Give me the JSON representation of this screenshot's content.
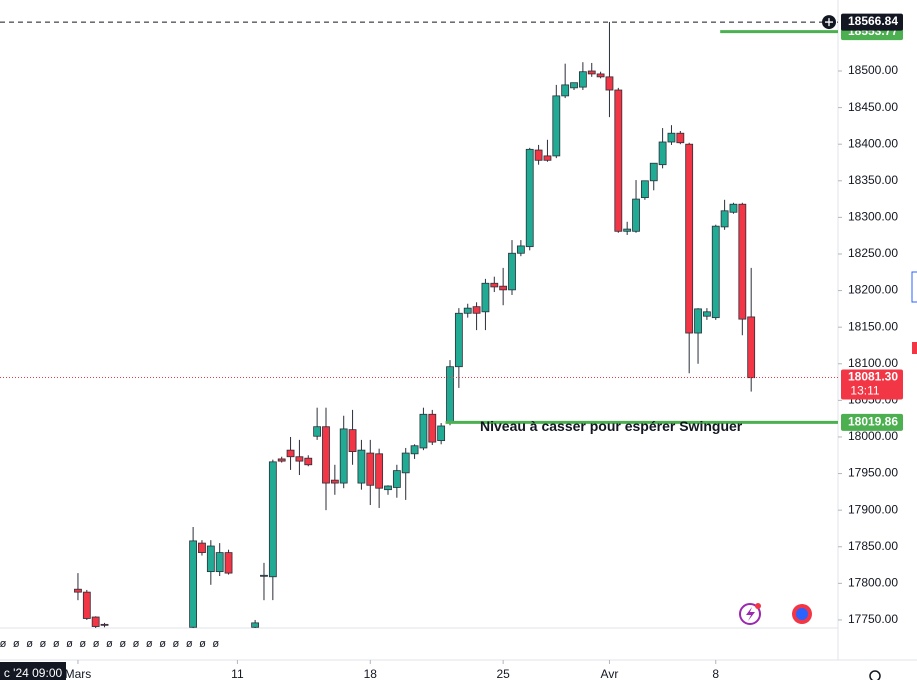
{
  "chart_data": {
    "type": "candlestick",
    "x": [
      0,
      1,
      2,
      3,
      13,
      14,
      15,
      16,
      17,
      20,
      21,
      22,
      23,
      24,
      25,
      26,
      27,
      28,
      29,
      30,
      31,
      32,
      33,
      34,
      35,
      36,
      37,
      38,
      39,
      40,
      41,
      42,
      43,
      44,
      45,
      46,
      47,
      48,
      49,
      50,
      51,
      52,
      53,
      54,
      55,
      56,
      57,
      58,
      59,
      60,
      61,
      62,
      63,
      64,
      65,
      66,
      67,
      68,
      69,
      70,
      71,
      72,
      73,
      74,
      75,
      76
    ],
    "open": [
      17792,
      17788,
      17754,
      17744,
      17740,
      17855,
      17816,
      17816,
      17842,
      17740,
      17810,
      17809,
      17970,
      17982,
      17973,
      17971,
      18001,
      18014,
      17941,
      17937,
      18010,
      17937,
      17978,
      17977,
      17928,
      17931,
      17951,
      17977,
      17985,
      18031,
      17995,
      18019,
      18096,
      18169,
      18178,
      18171,
      18210,
      18206,
      18201,
      18251,
      18260,
      18392,
      18384,
      18384,
      18466,
      18477,
      18478,
      18500,
      18496,
      18492,
      18474,
      18281,
      18281,
      18327,
      18350,
      18372,
      18403,
      18415,
      18400,
      18142,
      18165,
      18163,
      18287,
      18307,
      18318,
      18164
    ],
    "high": [
      17814,
      17791,
      17755,
      17746,
      17877,
      17859,
      17859,
      17855,
      17846,
      17750,
      17828,
      17969,
      17973,
      18000,
      17996,
      17975,
      18040,
      18040,
      17962,
      18029,
      18037,
      17996,
      17996,
      17984,
      17934,
      17962,
      17985,
      17990,
      18040,
      18037,
      18019,
      18105,
      18176,
      18182,
      18184,
      18216,
      18219,
      18231,
      18269,
      18269,
      18395,
      18399,
      18406,
      18481,
      18510,
      18484,
      18512,
      18511,
      18499,
      18567,
      18477,
      18294,
      18351,
      18350,
      18374,
      18422,
      18426,
      18418,
      18402,
      18176,
      18176,
      18290,
      18324,
      18320,
      18320,
      18231
    ],
    "low": [
      17777,
      17750,
      17739,
      17740,
      17739,
      17838,
      17798,
      17810,
      17812,
      17739,
      17777,
      17777,
      17965,
      17955,
      17948,
      17960,
      17996,
      17900,
      17921,
      17930,
      17962,
      17928,
      17907,
      17903,
      17921,
      17917,
      17914,
      17970,
      17982,
      17989,
      17990,
      18016,
      18067,
      18163,
      18146,
      18146,
      18198,
      18180,
      18194,
      18247,
      18255,
      18372,
      18376,
      18381,
      18463,
      18474,
      18474,
      18492,
      18490,
      18437,
      18279,
      18276,
      18279,
      18324,
      18337,
      18367,
      18399,
      18400,
      18087,
      18100,
      18160,
      18160,
      18283,
      18305,
      18139,
      18062
    ],
    "close": [
      17788,
      17752,
      17741,
      17743,
      17858,
      17842,
      17851,
      17842,
      17814,
      17746,
      17811,
      17966,
      17967,
      17973,
      17967,
      17962,
      18014,
      17937,
      17937,
      18011,
      17980,
      17982,
      17934,
      17930,
      17933,
      17954,
      17978,
      17988,
      18031,
      17993,
      18015,
      18096,
      18169,
      18176,
      18169,
      18210,
      18205,
      18201,
      18251,
      18261,
      18393,
      18378,
      18378,
      18466,
      18481,
      18484,
      18499,
      18496,
      18492,
      18474,
      18281,
      18284,
      18325,
      18350,
      18374,
      18403,
      18415,
      18402,
      18142,
      18175,
      18171,
      18288,
      18309,
      18318,
      18161,
      18081
    ],
    "up_color": "#22ab94",
    "down_color": "#f23645",
    "outline_color": "#2a2e39",
    "xlim": [
      -8.8,
      85.8
    ],
    "ylim": [
      17739,
      18597
    ],
    "yticks": [
      {
        "value": 17750,
        "label": "17750.00"
      },
      {
        "value": 17800,
        "label": "17800.00"
      },
      {
        "value": 17850,
        "label": "17850.00"
      },
      {
        "value": 17900,
        "label": "17900.00"
      },
      {
        "value": 17950,
        "label": "17950.00"
      },
      {
        "value": 18000,
        "label": "18000.00"
      },
      {
        "value": 18050,
        "label": "18050.00"
      },
      {
        "value": 18100,
        "label": "18100.00"
      },
      {
        "value": 18150,
        "label": "18150.00"
      },
      {
        "value": 18200,
        "label": "18200.00"
      },
      {
        "value": 18250,
        "label": "18250.00"
      },
      {
        "value": 18300,
        "label": "18300.00"
      },
      {
        "value": 18350,
        "label": "18350.00"
      },
      {
        "value": 18400,
        "label": "18400.00"
      },
      {
        "value": 18450,
        "label": "18450.00"
      },
      {
        "value": 18500,
        "label": "18500.00"
      }
    ],
    "xticks": [
      {
        "value": 0,
        "label": "Mars"
      },
      {
        "value": 18,
        "label": "11"
      },
      {
        "value": 33,
        "label": "18"
      },
      {
        "value": 48,
        "label": "25"
      },
      {
        "value": 60,
        "label": "Avr"
      },
      {
        "value": 72,
        "label": "8"
      }
    ],
    "levels": [
      {
        "value": 18553.77,
        "color": "#4caf50",
        "style": "solid",
        "start_x": 72.5
      },
      {
        "value": 18566.84,
        "color": "#131722",
        "style": "dashed",
        "start_x": -8.8
      },
      {
        "value": 18019.86,
        "color": "#4caf50",
        "style": "solid",
        "start_x": 41.5
      },
      {
        "value": {
          "value": 18081.3,
          "label": "18081.30"
        },
        "color": "#f23645",
        "style": "dotted",
        "start_x": -8.8,
        "countdown": "13:11"
      }
    ],
    "annotation": "Niveau à casser pour espérer Swinguer",
    "crosshair_time": "c '24  09:00",
    "event_markers": [
      "ø",
      "ø",
      "ø",
      "ø",
      "ø",
      "ø",
      "ø",
      "ø",
      "ø",
      "ø",
      "ø",
      "ø",
      "ø",
      "ø",
      "ø",
      "ø",
      "ø"
    ]
  }
}
